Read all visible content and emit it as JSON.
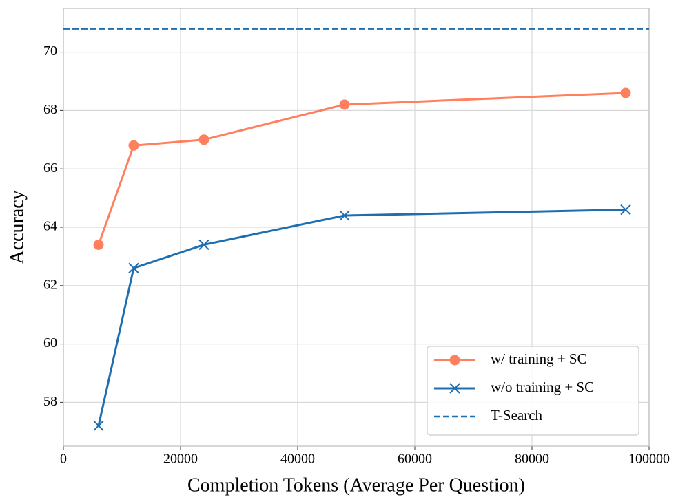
{
  "chart_data": {
    "type": "line",
    "xlabel": "Completion Tokens (Average Per Question)",
    "ylabel": "Accuracy",
    "x": [
      6000,
      12000,
      24000,
      48000,
      96000
    ],
    "series": [
      {
        "name": "w/ training + SC",
        "color": "#ff7f5e",
        "marker": "o",
        "values": [
          63.4,
          66.8,
          67.0,
          68.2,
          68.6
        ]
      },
      {
        "name": "w/o training + SC",
        "color": "#1f6fb0",
        "marker": "x",
        "values": [
          57.2,
          62.6,
          63.4,
          64.4,
          64.6
        ]
      }
    ],
    "hlines": [
      {
        "name": "T-Search",
        "color": "#1f6fb0",
        "style": "dashed",
        "value": 70.8
      }
    ],
    "xlim": [
      0,
      100000
    ],
    "xticks": [
      0,
      20000,
      40000,
      60000,
      80000,
      100000
    ],
    "ylim": [
      56.5,
      71.5
    ],
    "yticks": [
      58,
      60,
      62,
      64,
      66,
      68,
      70
    ],
    "grid": true,
    "legend": "lower right"
  }
}
